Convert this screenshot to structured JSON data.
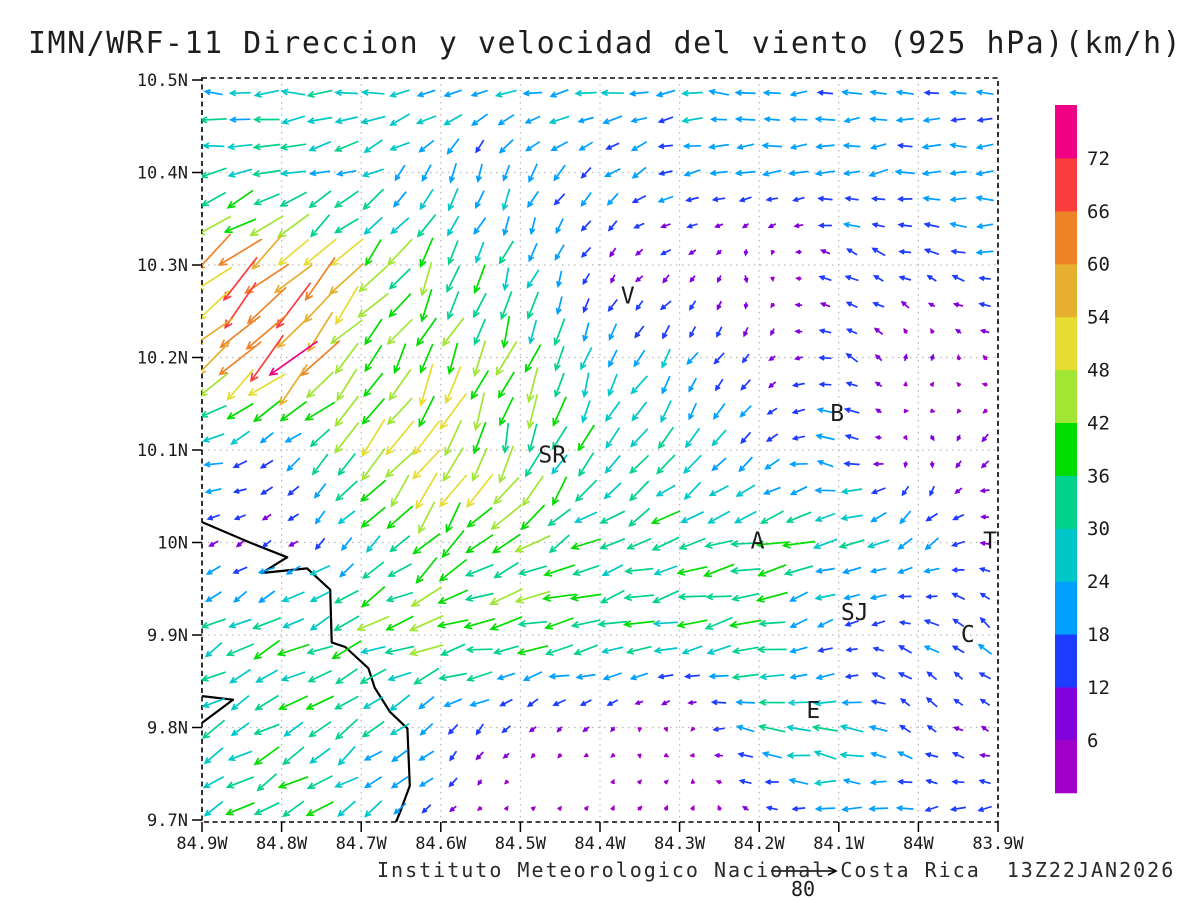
{
  "title": "IMN/WRF-11 Direccion y velocidad del viento (925 hPa)(km/h)",
  "footer": {
    "credit": "Instituto Meteorologico Nacional Costa Rica",
    "datetime": "13Z22JAN2026"
  },
  "chart_data": {
    "type": "quiver-vector-field-map",
    "title": "IMN/WRF-11 Direccion y velocidad del viento (925 hPa)(km/h)",
    "model": "IMN/WRF-11",
    "variable": "wind direction and speed",
    "level": "925 hPa",
    "units": "km/h",
    "grid_on": true,
    "lon_axis": {
      "ticks": [
        -84.9,
        -84.8,
        -84.7,
        -84.6,
        -84.5,
        -84.4,
        -84.3,
        -84.2,
        -84.1,
        -84.0,
        -83.9
      ],
      "labels": [
        "84.9W",
        "84.8W",
        "84.7W",
        "84.6W",
        "84.5W",
        "84.4W",
        "84.3W",
        "84.2W",
        "84.1W",
        "84W",
        "83.9W"
      ]
    },
    "lat_axis": {
      "ticks": [
        10.5,
        10.4,
        10.3,
        10.2,
        10.1,
        10.0,
        9.9,
        9.8,
        9.7
      ],
      "labels": [
        "10.5N",
        "10.4N",
        "10.3N",
        "10.2N",
        "10.1N",
        "10N",
        "9.9N",
        "9.8N",
        "9.7N"
      ]
    },
    "colorbar": {
      "boundary_labels": [
        6,
        12,
        18,
        24,
        30,
        36,
        42,
        48,
        54,
        60,
        66,
        72
      ],
      "colors": [
        "#A000C8",
        "#8200DC",
        "#1E3CFF",
        "#00A0FF",
        "#00C8C8",
        "#00D28C",
        "#00DC00",
        "#A0E632",
        "#E6DC32",
        "#E6AF2D",
        "#F08228",
        "#FA3C3C",
        "#F00082"
      ]
    },
    "reference_vector": {
      "value": 80,
      "label": "80"
    },
    "cities": [
      {
        "label": "V",
        "lon": -84.365,
        "lat": 10.267
      },
      {
        "label": "B",
        "lon": -84.102,
        "lat": 10.14
      },
      {
        "label": "SR",
        "lon": -84.46,
        "lat": 10.095
      },
      {
        "label": "A",
        "lon": -84.202,
        "lat": 10.002
      },
      {
        "label": "T",
        "lon": -83.91,
        "lat": 10.002
      },
      {
        "label": "SJ",
        "lon": -84.08,
        "lat": 9.925
      },
      {
        "label": "C",
        "lon": -83.938,
        "lat": 9.901
      },
      {
        "label": "E",
        "lon": -84.132,
        "lat": 9.819
      }
    ],
    "coastline": [
      [
        -84.9,
        10.022
      ],
      [
        -84.84,
        10.0
      ],
      [
        -84.793,
        9.984
      ],
      [
        -84.825,
        9.967
      ],
      [
        -84.768,
        9.972
      ],
      [
        -84.739,
        9.949
      ],
      [
        -84.737,
        9.892
      ],
      [
        -84.72,
        9.887
      ],
      [
        -84.691,
        9.864
      ],
      [
        -84.683,
        9.843
      ],
      [
        -84.664,
        9.817
      ],
      [
        -84.642,
        9.799
      ],
      [
        -84.639,
        9.737
      ],
      [
        -84.651,
        9.709
      ],
      [
        -84.66,
        9.69
      ]
    ],
    "coast_spit": [
      [
        -84.9,
        9.834
      ],
      [
        -84.861,
        9.83
      ],
      [
        -84.9,
        9.805
      ]
    ],
    "wind_grid": {
      "lons": [
        -84.9,
        -84.8,
        -84.7,
        -84.6,
        -84.5,
        -84.4,
        -84.3,
        -84.2,
        -84.1,
        -84.0,
        -83.9
      ],
      "lats": [
        10.5,
        10.4,
        10.3,
        10.2,
        10.1,
        10.0,
        9.9,
        9.8,
        9.7
      ],
      "u": [
        [
          -26,
          -26,
          -27,
          -26,
          -25,
          -24,
          -23,
          -22,
          -21,
          -19,
          -20
        ],
        [
          -31,
          -29,
          -24,
          -8,
          -10,
          -16,
          -18,
          -20,
          -20,
          -20,
          -22
        ],
        [
          -42,
          -44,
          -30,
          -14,
          -10,
          -6,
          -8,
          4,
          -14,
          -14,
          -18
        ],
        [
          -45,
          -50,
          -28,
          -20,
          -14,
          -10,
          -12,
          -5,
          -16,
          4,
          -5
        ],
        [
          -24,
          -12,
          -32,
          -24,
          -12,
          -14,
          -18,
          -10,
          -22,
          6,
          -9
        ],
        [
          -10,
          -9,
          -16,
          -30,
          -34,
          -30,
          -34,
          -36,
          -28,
          -18,
          -11
        ],
        [
          -26,
          -30,
          -34,
          -40,
          -38,
          -34,
          -30,
          -34,
          -10,
          -14,
          -14
        ],
        [
          -25,
          -28,
          -24,
          -12,
          -7,
          -5,
          2,
          -28,
          -26,
          -12,
          -9
        ],
        [
          -28,
          -30,
          -24,
          -9,
          4,
          3,
          4,
          -7,
          -24,
          -19,
          -14
        ]
      ],
      "v": [
        [
          0,
          0,
          -1,
          -2,
          -3,
          -2,
          0,
          0,
          0,
          0,
          0
        ],
        [
          -7,
          -9,
          -11,
          -22,
          -18,
          -12,
          -5,
          -4,
          -3,
          -2,
          -2
        ],
        [
          -38,
          -42,
          -34,
          -30,
          -26,
          -7,
          -5,
          -7,
          7,
          5,
          2
        ],
        [
          -44,
          -47,
          -32,
          -42,
          -38,
          -24,
          -16,
          -9,
          6,
          7,
          4
        ],
        [
          -3,
          -9,
          -30,
          -48,
          -40,
          -28,
          -24,
          -14,
          9,
          -7,
          -9
        ],
        [
          -5,
          -6,
          -19,
          -34,
          -24,
          -14,
          -9,
          -8,
          -10,
          -14,
          7
        ],
        [
          -14,
          -17,
          -14,
          -8,
          -6,
          -5,
          -5,
          -6,
          -9,
          9,
          11
        ],
        [
          -15,
          -17,
          -19,
          -14,
          -8,
          -5,
          -4,
          5,
          7,
          8,
          5
        ],
        [
          -17,
          -19,
          -14,
          -7,
          4,
          5,
          6,
          4,
          -4,
          -3,
          -3
        ]
      ]
    }
  },
  "colors": {
    "grid": "#b8b8b8",
    "border": "#000000",
    "coast": "#000000",
    "text": "#1b1b1b"
  }
}
